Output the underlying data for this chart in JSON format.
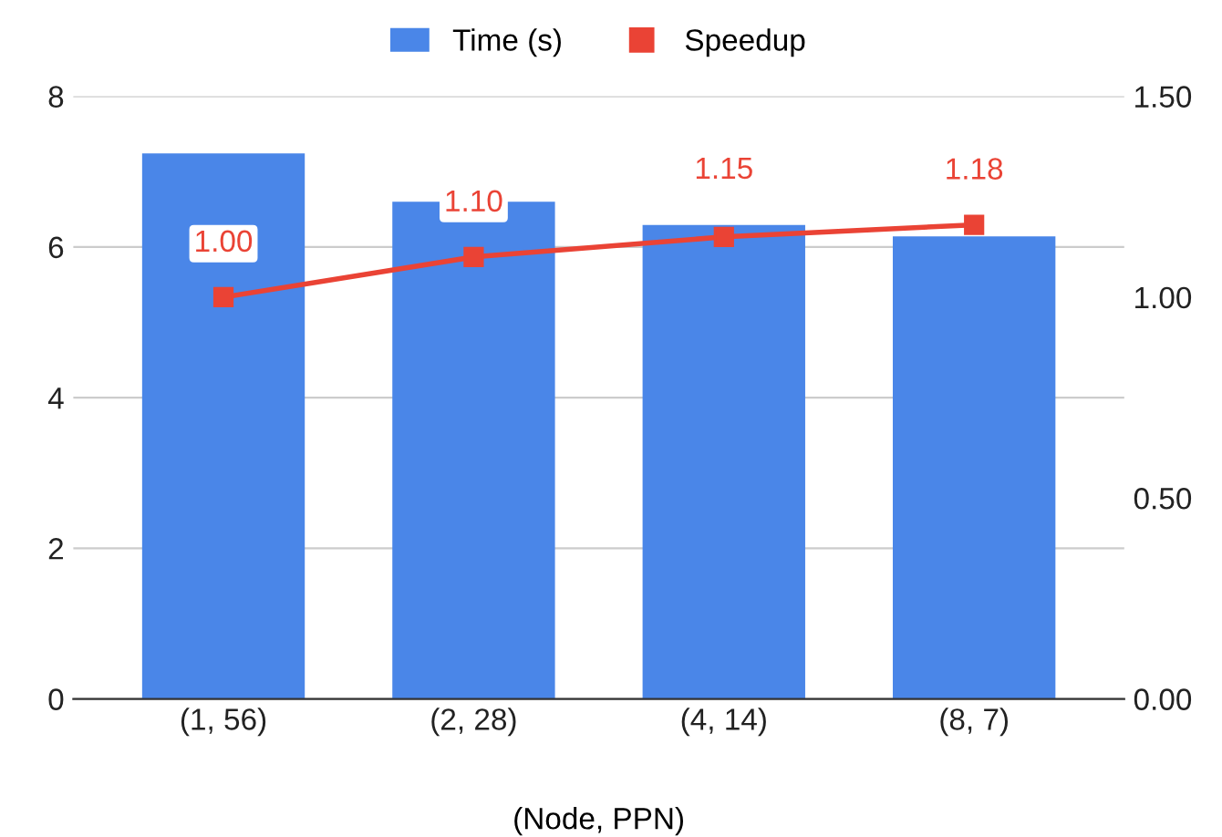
{
  "chart_data": {
    "type": "bar",
    "xlabel": "(Node, PPN)",
    "categories": [
      "(1, 56)",
      "(2, 28)",
      "(4, 14)",
      "(8, 7)"
    ],
    "series": [
      {
        "name": "Time (s)",
        "color": "#4a86e8",
        "values": [
          7.24,
          6.6,
          6.29,
          6.14
        ]
      },
      {
        "name": "Speedup",
        "type": "line",
        "axis": "y2",
        "color": "#ea4335",
        "marker": "square",
        "values": [
          1.0,
          1.1,
          1.15,
          1.18
        ],
        "value_labels": [
          "1.00",
          "1.10",
          "1.15",
          "1.18"
        ]
      }
    ],
    "ylim": [
      0,
      8
    ],
    "yticks": [
      0,
      2,
      4,
      6,
      8
    ],
    "y2lim": [
      0,
      1.5
    ],
    "y2ticks": [
      {
        "value": 0,
        "label": "0.00"
      },
      {
        "value": 0.5,
        "label": "0.50"
      },
      {
        "value": 1.0,
        "label": "1.00"
      },
      {
        "value": 1.5,
        "label": "1.50"
      }
    ],
    "grid": "y",
    "legend": "top"
  }
}
